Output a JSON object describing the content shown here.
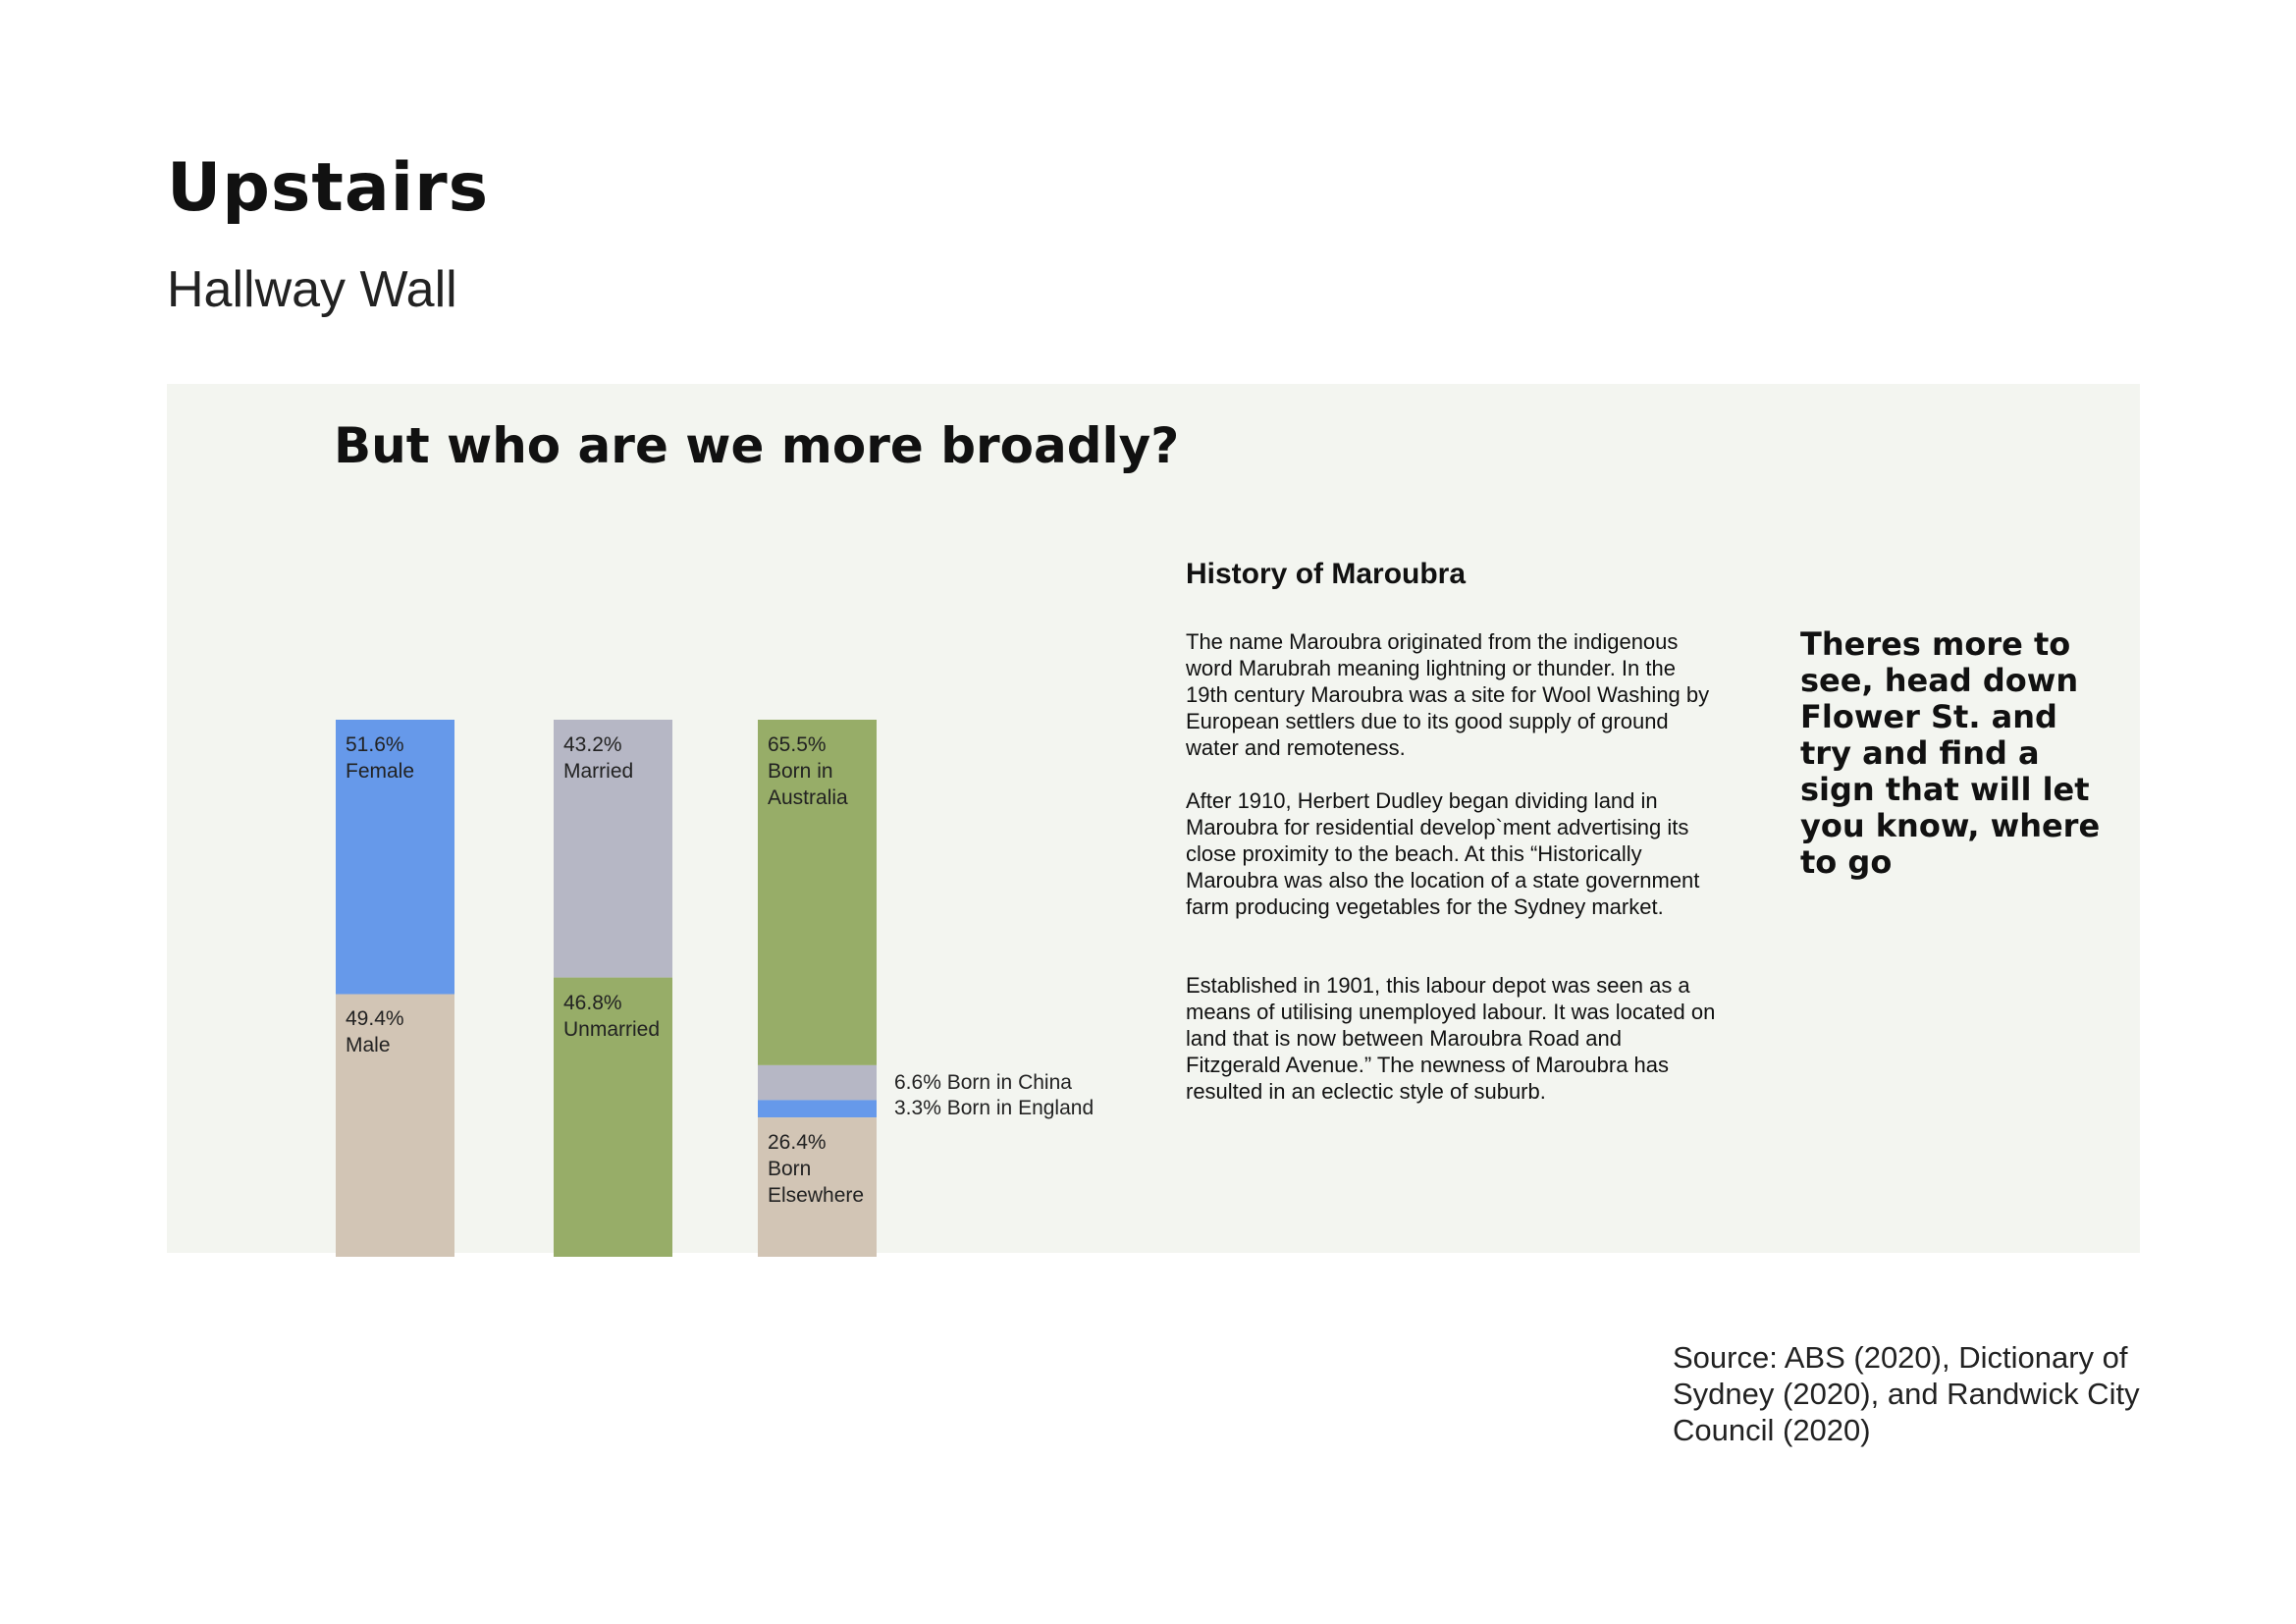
{
  "header": {
    "title": "Upstairs",
    "subtitle": "Hallway Wall"
  },
  "panel": {
    "heading": "But who are we more broadly?"
  },
  "chart_data": {
    "type": "bar",
    "stacked": true,
    "bars": [
      {
        "segments": [
          {
            "pct_label": "51.6%",
            "label": "Female",
            "value": 51.6,
            "color": "#6699ea"
          },
          {
            "pct_label": "49.4%",
            "label": "Male",
            "value": 49.4,
            "color": "#d2c5b5"
          }
        ]
      },
      {
        "segments": [
          {
            "pct_label": "43.2%",
            "label": "Married",
            "value": 43.2,
            "color": "#b6b7c5"
          },
          {
            "pct_label": "46.8%",
            "label": "Unmarried",
            "value": 46.8,
            "color": "#97ad68"
          }
        ]
      },
      {
        "segments": [
          {
            "pct_label": "65.5%",
            "label": "Born in\nAustralia",
            "value": 65.5,
            "color": "#97ad68"
          },
          {
            "pct_label": "6.6%",
            "label": "Born in China",
            "value": 6.6,
            "color": "#b6b7c5",
            "side": true
          },
          {
            "pct_label": "3.3%",
            "label": "Born in England",
            "value": 3.3,
            "color": "#6699ea",
            "side": true
          },
          {
            "pct_label": "26.4%",
            "label": "Born\nElsewhere",
            "value": 26.4,
            "color": "#d2c5b5"
          }
        ]
      }
    ]
  },
  "history": {
    "title": "History of Maroubra",
    "paragraphs": [
      "The name Maroubra originated from the indigenous word Marubrah meaning lightning or thunder. In the 19th century Maroubra was a site for Wool Washing by European settlers due to its good supply of ground water and remoteness.",
      "After 1910, Herbert Dudley began dividing land in Maroubra for residential develop`ment advertising its close proximity to the beach. At this “Historically Maroubra was also the location of a state government farm producing vegetables for the Sydney market.",
      "Established in 1901, this labour depot was seen as a means of utilising unemployed labour. It was located on land that is now between Maroubra Road and Fitzgerald Avenue.” The newness of Maroubra has resulted in an eclectic style of suburb."
    ]
  },
  "callout": {
    "text": "Theres more to see, head down Flower St. and try and find  a sign that will let you know, where to go"
  },
  "source": {
    "text": "Source: ABS (2020), Dictionary of Sydney (2020), and Randwick City Council (2020)"
  }
}
